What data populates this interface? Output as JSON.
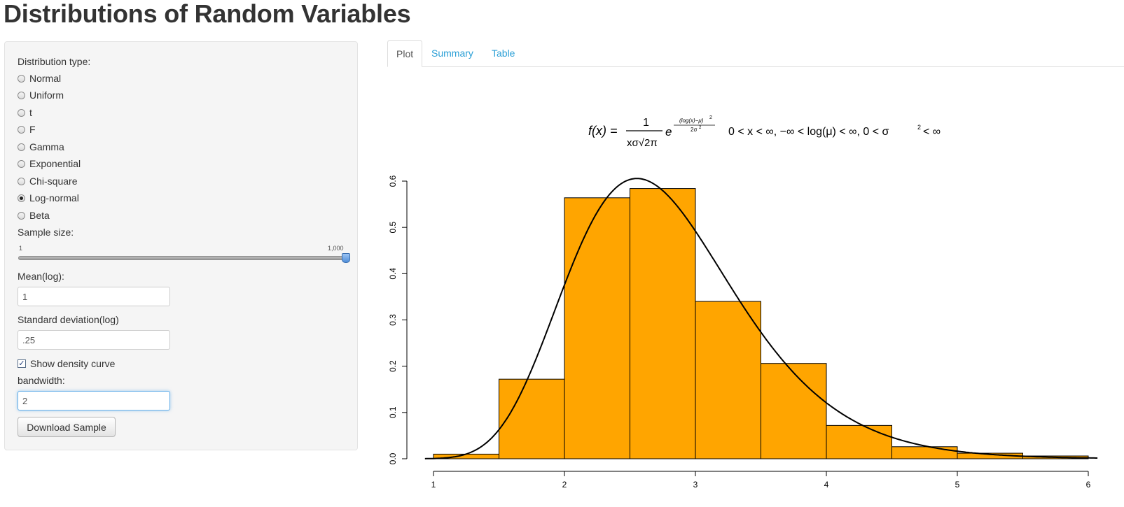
{
  "page": {
    "title": "Distributions of Random Variables"
  },
  "sidebar": {
    "dist_label": "Distribution type:",
    "distributions": [
      {
        "label": "Normal",
        "checked": false
      },
      {
        "label": "Uniform",
        "checked": false
      },
      {
        "label": "t",
        "checked": false
      },
      {
        "label": "F",
        "checked": false
      },
      {
        "label": "Gamma",
        "checked": false
      },
      {
        "label": "Exponential",
        "checked": false
      },
      {
        "label": "Chi-square",
        "checked": false
      },
      {
        "label": "Log-normal",
        "checked": true
      },
      {
        "label": "Beta",
        "checked": false
      }
    ],
    "sample_size": {
      "label": "Sample size:",
      "min_label": "1",
      "max_label": "1,000",
      "value": 1000
    },
    "mean": {
      "label": "Mean(log):",
      "value": "1"
    },
    "sd": {
      "label": "Standard deviation(log)",
      "value": ".25"
    },
    "density": {
      "label": "Show density curve",
      "checked": true
    },
    "bandwidth": {
      "label": "bandwidth:",
      "value": "2"
    },
    "download_label": "Download Sample"
  },
  "tabs": [
    {
      "label": "Plot",
      "active": true
    },
    {
      "label": "Summary",
      "active": false
    },
    {
      "label": "Table",
      "active": false
    }
  ],
  "formula": {
    "lhs": "f(x) =",
    "numerator": "1",
    "denominator": "xσ√2π",
    "e": "e",
    "exp_num": "(log(x)−μ)",
    "exp_num_pow": "2",
    "exp_den": "2σ",
    "exp_den_pow": "2",
    "domain": "0 < x < ∞, −∞ < log(μ) < ∞, 0 < σ",
    "domain_pow": "2",
    "domain_end": "< ∞"
  },
  "colors": {
    "bar_fill": "#FFA500",
    "bar_stroke": "#000000",
    "accent_link": "#2a9fd6"
  },
  "chart_data": {
    "type": "bar",
    "bins": [
      {
        "from": 1.0,
        "to": 1.5,
        "density": 0.01
      },
      {
        "from": 1.5,
        "to": 2.0,
        "density": 0.172
      },
      {
        "from": 2.0,
        "to": 2.5,
        "density": 0.564
      },
      {
        "from": 2.5,
        "to": 3.0,
        "density": 0.584
      },
      {
        "from": 3.0,
        "to": 3.5,
        "density": 0.34
      },
      {
        "from": 3.5,
        "to": 4.0,
        "density": 0.206
      },
      {
        "from": 4.0,
        "to": 4.5,
        "density": 0.072
      },
      {
        "from": 4.5,
        "to": 5.0,
        "density": 0.026
      },
      {
        "from": 5.0,
        "to": 5.5,
        "density": 0.012
      },
      {
        "from": 5.5,
        "to": 6.0,
        "density": 0.006
      }
    ],
    "density_curve": {
      "meanlog": 1,
      "sdlog": 0.25
    },
    "x_ticks": [
      "1",
      "2",
      "3",
      "4",
      "5",
      "6"
    ],
    "y_ticks": [
      "0.0",
      "0.1",
      "0.2",
      "0.3",
      "0.4",
      "0.5",
      "0.6"
    ],
    "xlim": [
      1,
      6
    ],
    "ylim": [
      0,
      0.6
    ],
    "title": "",
    "xlabel": "",
    "ylabel": ""
  }
}
